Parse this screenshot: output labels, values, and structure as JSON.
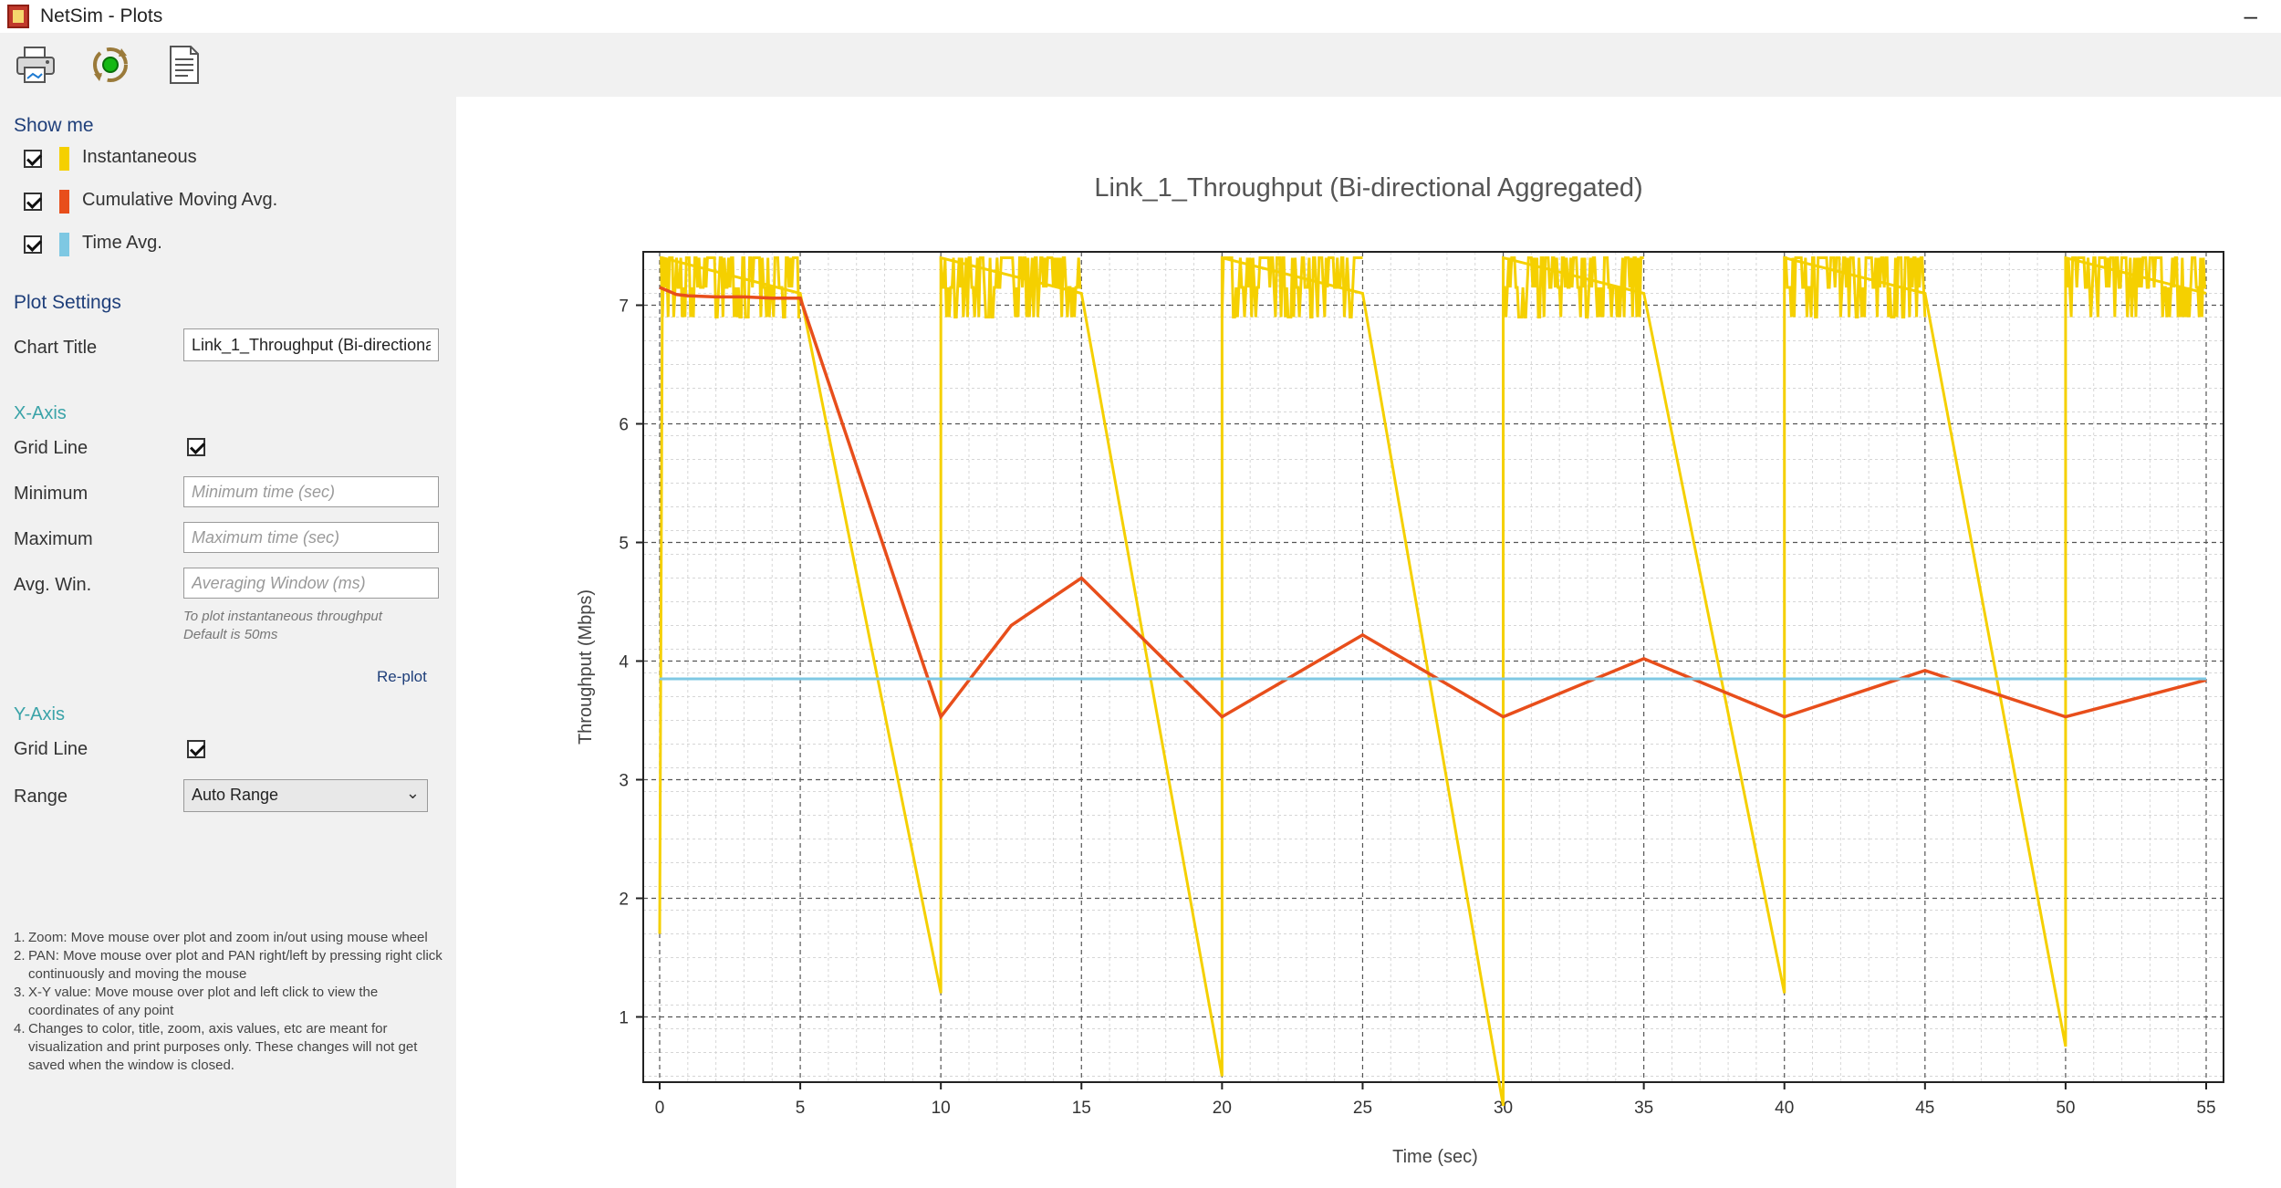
{
  "window": {
    "title": "NetSim - Plots",
    "minimize_glyph": "–"
  },
  "toolbar": {
    "icons": [
      "printer-icon",
      "refresh-icon",
      "report-icon"
    ]
  },
  "sidebar": {
    "show_me": {
      "heading": "Show me",
      "items": [
        {
          "label": "Instantaneous",
          "checked": true,
          "color": "#f5d000"
        },
        {
          "label": "Cumulative Moving Avg.",
          "checked": true,
          "color": "#e84e1b"
        },
        {
          "label": "Time Avg.",
          "checked": true,
          "color": "#7ec8e3"
        }
      ]
    },
    "plot_settings": {
      "heading": "Plot Settings",
      "chart_title_label": "Chart Title",
      "chart_title_value": "Link_1_Throughput (Bi-directiona"
    },
    "x_axis": {
      "heading": "X-Axis",
      "grid_line_label": "Grid Line",
      "grid_line_checked": true,
      "minimum_label": "Minimum",
      "minimum_placeholder": "Minimum time (sec)",
      "maximum_label": "Maximum",
      "maximum_placeholder": "Maximum time (sec)",
      "avg_win_label": "Avg. Win.",
      "avg_win_placeholder": "Averaging Window (ms)",
      "hint_line1": "To plot instantaneous throughput",
      "hint_line2": "Default is 50ms",
      "replot_label": "Re-plot"
    },
    "y_axis": {
      "heading": "Y-Axis",
      "grid_line_label": "Grid Line",
      "grid_line_checked": true,
      "range_label": "Range",
      "range_value": "Auto Range"
    },
    "notes": [
      {
        "n": "1.",
        "text": "Zoom: Move mouse over plot and zoom in/out using mouse wheel"
      },
      {
        "n": "2.",
        "text": "PAN: Move mouse over plot and PAN right/left by pressing right click continuously and moving the mouse"
      },
      {
        "n": "3.",
        "text": "X-Y value: Move mouse over plot and left click to view the coordinates of any point"
      },
      {
        "n": "4.",
        "text": "Changes to color, title, zoom, axis values, etc are meant for visualization and print purposes only. These changes will not get saved when the window is closed."
      }
    ]
  },
  "chart_data": {
    "type": "line",
    "title": "Link_1_Throughput (Bi-directional Aggregated)",
    "xlabel": "Time (sec)",
    "ylabel": "Throughput (Mbps)",
    "xlim": [
      0,
      55
    ],
    "ylim": [
      0.45,
      7.45
    ],
    "xticks": [
      0,
      5,
      10,
      15,
      20,
      25,
      30,
      35,
      40,
      45,
      50,
      55
    ],
    "yticks": [
      1,
      2,
      3,
      4,
      5,
      6,
      7
    ],
    "grid": true,
    "series": [
      {
        "name": "Instantaneous",
        "color": "#f5d000",
        "active_bursts": [
          [
            0,
            5
          ],
          [
            10,
            15
          ],
          [
            20,
            25
          ],
          [
            30,
            35
          ],
          [
            40,
            45
          ],
          [
            50,
            55
          ]
        ],
        "burst_range": [
          6.9,
          7.4
        ],
        "points": [
          [
            0,
            1.7
          ],
          [
            0.1,
            7.4
          ],
          [
            5,
            7.1
          ],
          [
            10,
            1.2
          ],
          [
            10,
            7.4
          ],
          [
            15,
            7.1
          ],
          [
            20,
            0.5
          ],
          [
            20,
            7.4
          ],
          [
            25,
            7.1
          ],
          [
            30,
            0.25
          ],
          [
            30,
            7.4
          ],
          [
            35,
            7.1
          ],
          [
            40,
            1.2
          ],
          [
            40,
            7.4
          ],
          [
            45,
            7.1
          ],
          [
            50,
            0.75
          ],
          [
            50,
            7.4
          ],
          [
            55,
            7.1
          ]
        ]
      },
      {
        "name": "Cumulative Moving Avg.",
        "color": "#e84e1b",
        "points": [
          [
            0,
            7.15
          ],
          [
            0.3,
            7.12
          ],
          [
            0.6,
            7.09
          ],
          [
            1,
            7.08
          ],
          [
            2,
            7.07
          ],
          [
            3,
            7.07
          ],
          [
            4,
            7.06
          ],
          [
            5,
            7.06
          ],
          [
            10,
            3.53
          ],
          [
            12.5,
            4.3
          ],
          [
            15,
            4.7
          ],
          [
            20,
            3.53
          ],
          [
            25,
            4.22
          ],
          [
            30,
            3.53
          ],
          [
            35,
            4.02
          ],
          [
            40,
            3.53
          ],
          [
            45,
            3.92
          ],
          [
            50,
            3.53
          ],
          [
            55,
            3.84
          ]
        ]
      },
      {
        "name": "Time Avg.",
        "color": "#7ec8e3",
        "points": [
          [
            0,
            3.85
          ],
          [
            55,
            3.85
          ]
        ]
      }
    ]
  }
}
